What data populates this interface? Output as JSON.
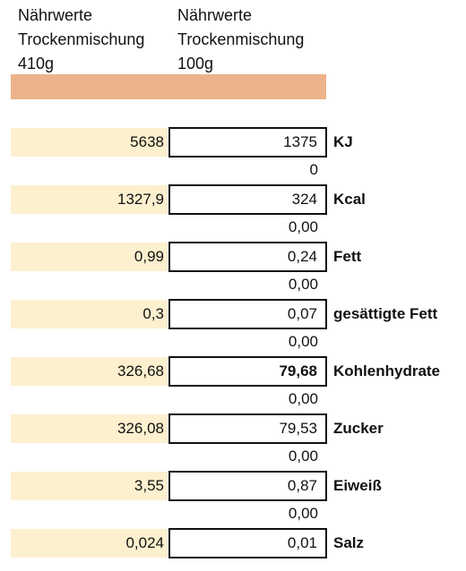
{
  "headers": [
    [
      "Nährwerte",
      "Trockenmischung",
      "410g"
    ],
    [
      "Nährwerte",
      "Trockenmischung",
      "100g"
    ]
  ],
  "rows": [
    {
      "a": "5638",
      "b": "1375",
      "label": "KJ",
      "b_bold": false
    },
    {
      "a": "1327,9",
      "b": "324",
      "label": "Kcal",
      "b_bold": false
    },
    {
      "a": "0,99",
      "b": "0,24",
      "label": "Fett",
      "b_bold": false
    },
    {
      "a": "0,3",
      "b": "0,07",
      "label": "gesättigte Fett",
      "b_bold": false
    },
    {
      "a": "326,68",
      "b": "79,68",
      "label": "Kohlenhydrate",
      "b_bold": true
    },
    {
      "a": "326,08",
      "b": "79,53",
      "label": "Zucker",
      "b_bold": false
    },
    {
      "a": "3,55",
      "b": "0,87",
      "label": "Eiweiß",
      "b_bold": false
    },
    {
      "a": "0,024",
      "b": "0,01",
      "label": "Salz",
      "b_bold": false
    }
  ],
  "diffs": [
    "0",
    "0,00",
    "0,00",
    "0,00",
    "0,00",
    "0,00",
    "0,00"
  ],
  "colors": {
    "header_bar": "#ecb38a",
    "cell_fill": "#fdf0cf"
  }
}
